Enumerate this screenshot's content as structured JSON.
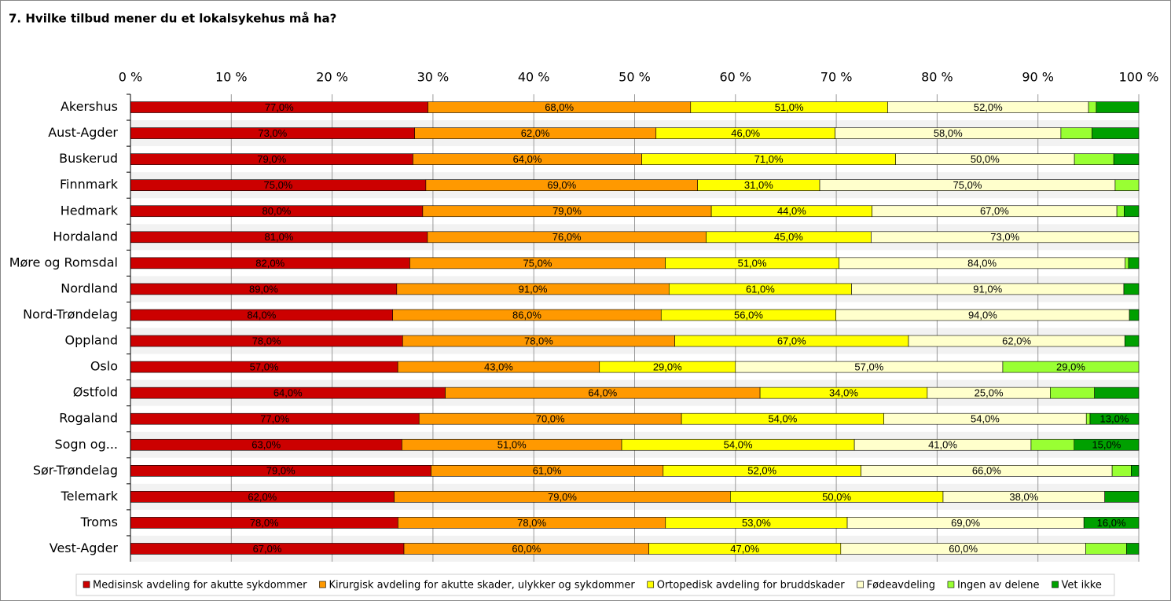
{
  "chart_data": {
    "type": "bar",
    "orientation": "horizontal",
    "stacking": "percent",
    "title": "7. Hvilke tilbud mener du et lokalsykehus må ha?",
    "categories": [
      "Akershus",
      "Aust-Agder",
      "Buskerud",
      "Finnmark",
      "Hedmark",
      "Hordaland",
      "Møre og Romsdal",
      "Nordland",
      "Nord-Trøndelag",
      "Oppland",
      "Oslo",
      "Østfold",
      "Rogaland",
      "Sogn og...",
      "Sør-Trøndelag",
      "Telemark",
      "Troms",
      "Vest-Agder"
    ],
    "series": [
      {
        "name": "Medisinsk avdeling for akutte sykdommer",
        "color": "#cc0000",
        "values": [
          77,
          73,
          79,
          75,
          80,
          81,
          82,
          89,
          84,
          78,
          57,
          64,
          77,
          63,
          79,
          62,
          78,
          67
        ],
        "value_labels": [
          "77,0%",
          "73,0%",
          "79,0%",
          "75,0%",
          "80,0%",
          "81,0%",
          "82,0%",
          "89,0%",
          "84,0%",
          "78,0%",
          "57,0%",
          "64,0%",
          "77,0%",
          "63,0%",
          "79,0%",
          "62,0%",
          "78,0%",
          "67,0%"
        ]
      },
      {
        "name": "Kirurgisk avdeling for akutte skader, ulykker og sykdommer",
        "color": "#ff9900",
        "values": [
          68,
          62,
          64,
          69,
          79,
          76,
          75,
          91,
          86,
          78,
          43,
          64,
          70,
          51,
          61,
          79,
          78,
          60
        ],
        "value_labels": [
          "68,0%",
          "62,0%",
          "64,0%",
          "69,0%",
          "79,0%",
          "76,0%",
          "75,0%",
          "91,0%",
          "86,0%",
          "78,0%",
          "43,0%",
          "64,0%",
          "70,0%",
          "51,0%",
          "61,0%",
          "79,0%",
          "78,0%",
          "60,0%"
        ]
      },
      {
        "name": "Ortopedisk avdeling for bruddskader",
        "color": "#ffff00",
        "values": [
          51,
          46,
          71,
          31,
          44,
          45,
          51,
          61,
          56,
          67,
          29,
          34,
          54,
          54,
          52,
          50,
          53,
          47
        ],
        "value_labels": [
          "51,0%",
          "46,0%",
          "71,0%",
          "31,0%",
          "44,0%",
          "45,0%",
          "51,0%",
          "61,0%",
          "56,0%",
          "67,0%",
          "29,0%",
          "34,0%",
          "54,0%",
          "54,0%",
          "52,0%",
          "50,0%",
          "53,0%",
          "47,0%"
        ]
      },
      {
        "name": "Fødeavdeling",
        "color": "#ffffcc",
        "values": [
          52,
          58,
          50,
          75,
          67,
          73,
          84,
          91,
          94,
          62,
          57,
          25,
          54,
          41,
          66,
          38,
          69,
          60
        ],
        "value_labels": [
          "52,0%",
          "58,0%",
          "50,0%",
          "75,0%",
          "67,0%",
          "73,0%",
          "84,0%",
          "91,0%",
          "94,0%",
          "62,0%",
          "57,0%",
          "25,0%",
          "54,0%",
          "41,0%",
          "66,0%",
          "38,0%",
          "69,0%",
          "60,0%"
        ]
      },
      {
        "name": "Ingen av delene",
        "color": "#99ff33",
        "values": [
          2,
          8,
          11,
          6,
          2,
          0,
          1,
          0,
          0,
          0,
          29,
          9,
          1,
          10,
          5,
          0,
          0,
          10
        ],
        "value_labels": [
          null,
          null,
          null,
          null,
          null,
          null,
          null,
          null,
          null,
          null,
          "29,0%",
          null,
          null,
          null,
          null,
          null,
          null,
          null
        ]
      },
      {
        "name": "Vet ikke",
        "color": "#00a000",
        "values": [
          11,
          12,
          7,
          0,
          4,
          0,
          3,
          5,
          3,
          4,
          0,
          9,
          13,
          15,
          2,
          8,
          16,
          3
        ],
        "value_labels": [
          null,
          null,
          null,
          null,
          null,
          null,
          null,
          null,
          null,
          null,
          null,
          null,
          "13,0%",
          "15,0%",
          null,
          null,
          "16,0%",
          null
        ]
      }
    ],
    "xlim": [
      0,
      100
    ],
    "xticks": [
      {
        "value": 0,
        "label": "0 %"
      },
      {
        "value": 10,
        "label": "10 %"
      },
      {
        "value": 20,
        "label": "20 %"
      },
      {
        "value": 30,
        "label": "30 %"
      },
      {
        "value": 40,
        "label": "40 %"
      },
      {
        "value": 50,
        "label": "50 %"
      },
      {
        "value": 60,
        "label": "60 %"
      },
      {
        "value": 70,
        "label": "70 %"
      },
      {
        "value": 80,
        "label": "80 %"
      },
      {
        "value": 90,
        "label": "90 %"
      },
      {
        "value": 100,
        "label": "100 %"
      }
    ],
    "grid": true,
    "legend": "bottom"
  }
}
